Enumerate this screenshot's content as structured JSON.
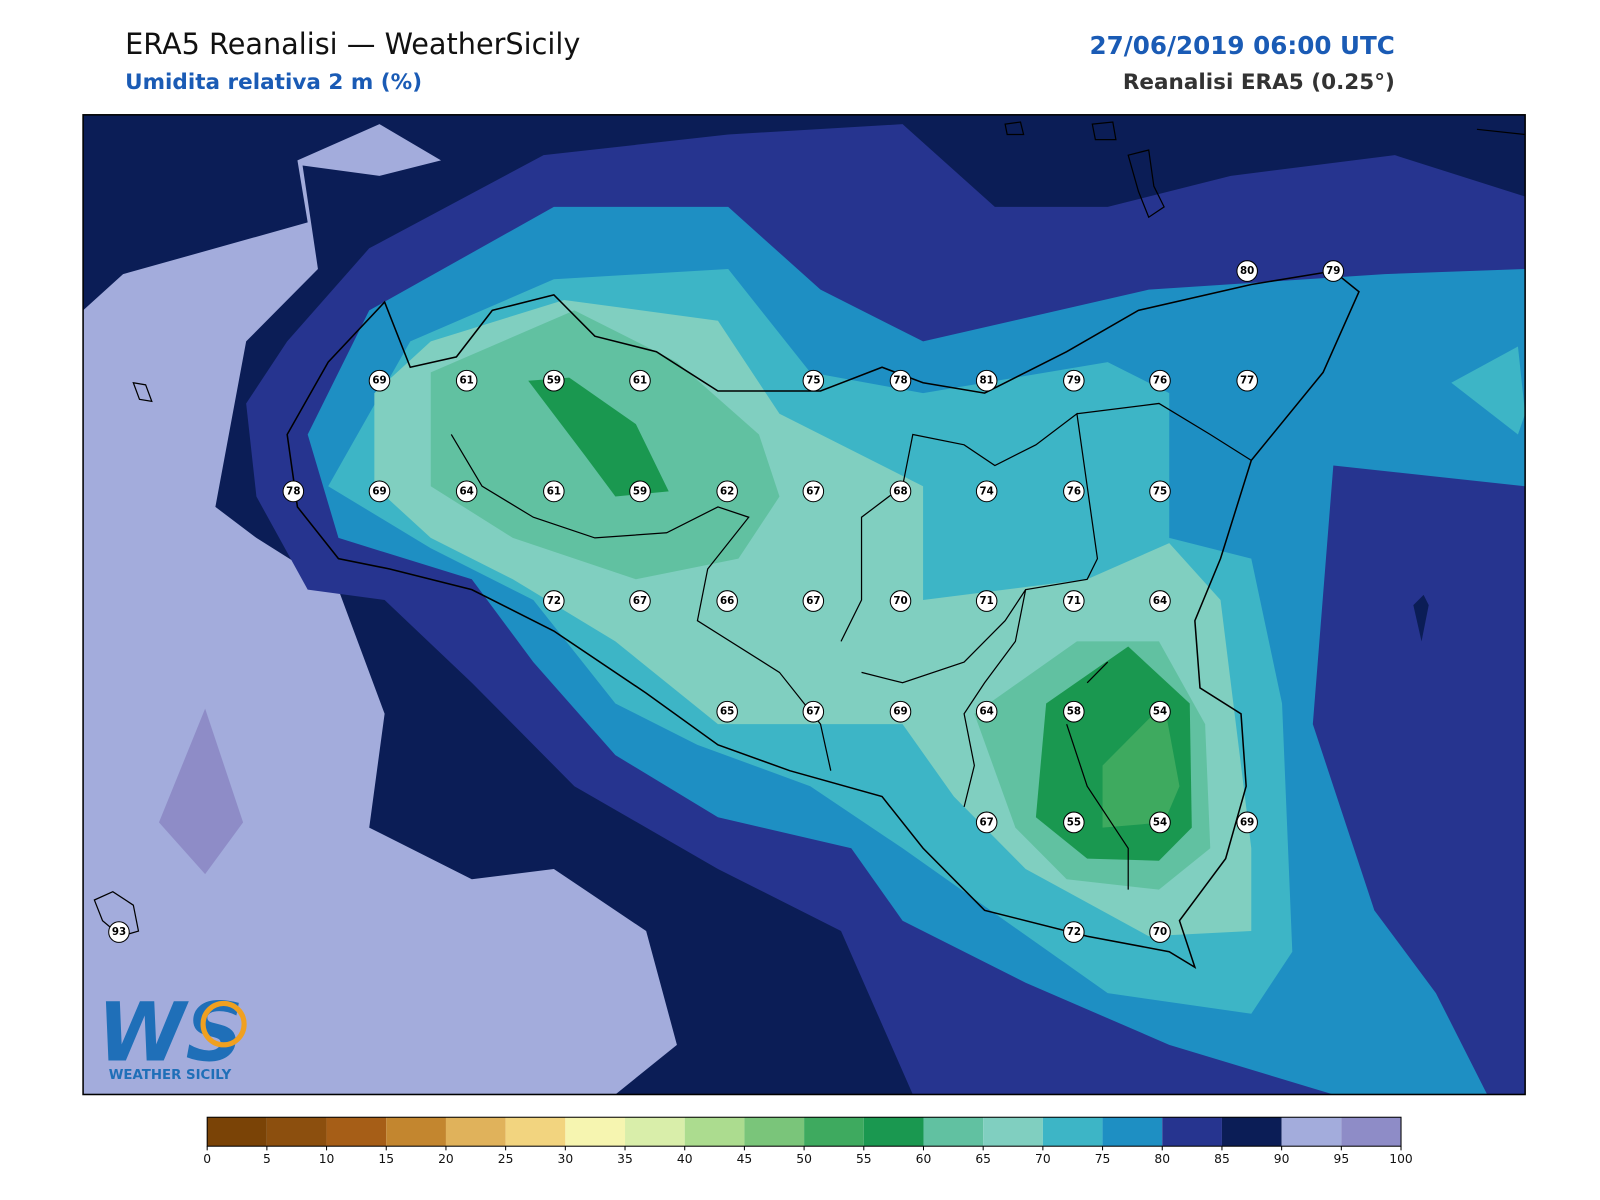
{
  "header": {
    "title": "ERA5 Reanalisi — WeatherSicily",
    "subtitle": "Umidita relativa 2 m (%)",
    "datetime": "27/06/2019 06:00 UTC",
    "source": "Reanalisi ERA5 (0.25°)"
  },
  "stations": [
    80,
    79,
    69,
    61,
    59,
    61,
    75,
    78,
    81,
    79,
    76,
    77,
    78,
    69,
    64,
    61,
    59,
    62,
    67,
    68,
    74,
    76,
    75,
    72,
    67,
    66,
    67,
    70,
    71,
    71,
    64,
    65,
    67,
    69,
    64,
    58,
    54,
    67,
    55,
    54,
    69,
    72,
    70,
    93
  ],
  "colorbar": {
    "ticks": [
      0,
      5,
      10,
      15,
      20,
      25,
      30,
      35,
      40,
      45,
      50,
      55,
      60,
      65,
      70,
      75,
      80,
      85,
      90,
      95,
      100
    ],
    "colors": [
      "#7a4306",
      "#8c4f0e",
      "#a65e17",
      "#c3862f",
      "#e0b25b",
      "#f2d47f",
      "#f6f5b0",
      "#d9eeaa",
      "#acdc8f",
      "#7ac57a",
      "#3eaa5f",
      "#1a9850",
      "#61c1a1",
      "#80cfc0",
      "#3db5c6",
      "#1e8fc3",
      "#26348f",
      "#0b1d56",
      "#a3acdc",
      "#8e8cc7"
    ]
  },
  "logo": {
    "mark": "WS",
    "text": "WEATHER SICILY"
  }
}
